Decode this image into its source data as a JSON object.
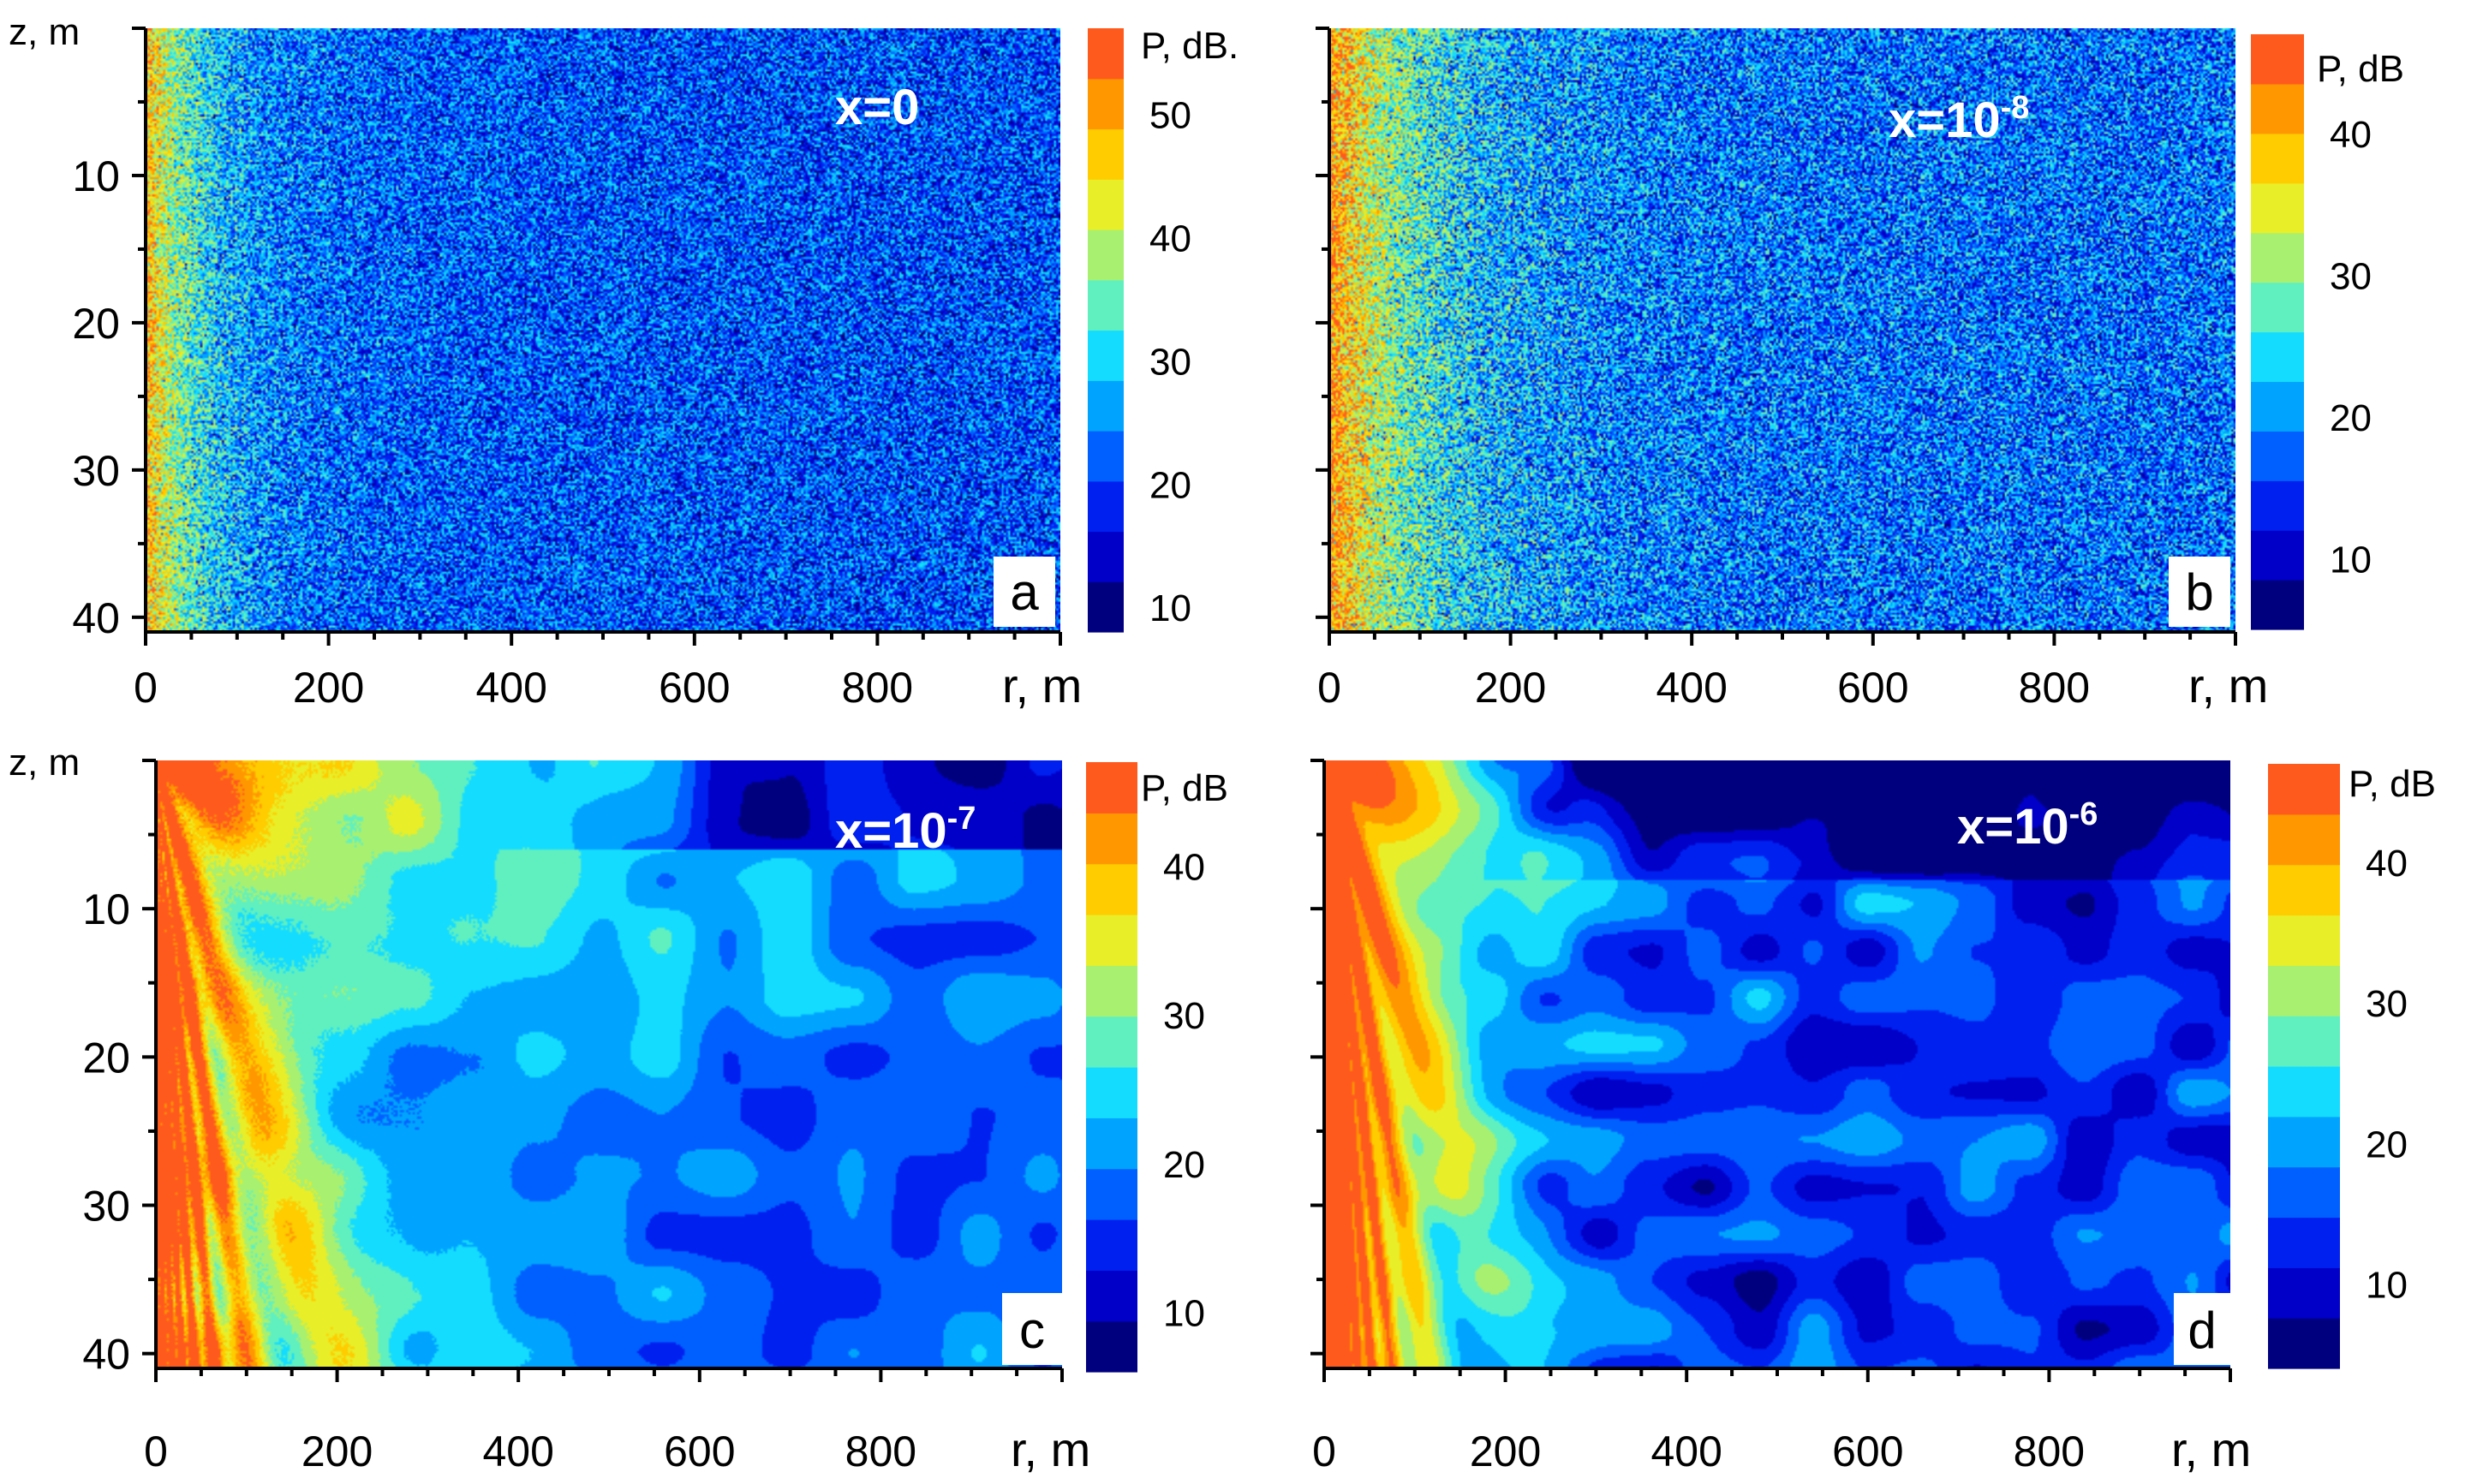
{
  "chart_data": [
    {
      "type": "heatmap",
      "panel_label": "a",
      "annotation": {
        "var": "x",
        "eq": "=",
        "base": "0",
        "exp": ""
      },
      "xlabel": "r, m",
      "ylabel": "z, m",
      "x_ticks": [
        "0",
        "200",
        "400",
        "600",
        "800"
      ],
      "y_ticks": [
        "10",
        "20",
        "30",
        "40"
      ],
      "xlim": [
        0,
        1000
      ],
      "ylim": [
        0,
        41
      ],
      "y_inverted": true,
      "colorbar": {
        "label": "P, dB.",
        "ticks": [
          "50",
          "40",
          "30",
          "20",
          "10"
        ],
        "tick_values": [
          50,
          40,
          30,
          20,
          10
        ],
        "range": [
          8,
          57
        ]
      },
      "field": {
        "pattern": "noise",
        "noise": 0.8,
        "source_level": 46,
        "background_level": 21,
        "decay_range_m": 160
      },
      "colors": [
        "#00007f",
        "#0000c8",
        "#0020f0",
        "#0060ff",
        "#00a4ff",
        "#14dcff",
        "#60f0c0",
        "#a8f070",
        "#e8ee28",
        "#ffcc00",
        "#ff9800",
        "#ff5a1e"
      ]
    },
    {
      "type": "heatmap",
      "panel_label": "b",
      "annotation": {
        "var": "x",
        "eq": "=",
        "base": "10",
        "exp": "-8"
      },
      "xlabel": "r, m",
      "ylabel": "",
      "x_ticks": [
        "0",
        "200",
        "400",
        "600",
        "800"
      ],
      "y_ticks": [],
      "xlim": [
        0,
        1000
      ],
      "ylim": [
        0,
        41
      ],
      "y_inverted": true,
      "colorbar": {
        "label": "P, dB",
        "ticks": [
          "40",
          "30",
          "20",
          "10"
        ],
        "tick_values": [
          40,
          30,
          20,
          10
        ],
        "range": [
          5,
          47
        ]
      },
      "field": {
        "pattern": "noise",
        "noise": 0.75,
        "source_level": 40,
        "background_level": 18,
        "decay_range_m": 250
      },
      "colors": [
        "#00007f",
        "#0000c8",
        "#0020f0",
        "#0060ff",
        "#00a4ff",
        "#14dcff",
        "#60f0c0",
        "#a8f070",
        "#e8ee28",
        "#ffcc00",
        "#ff9800",
        "#ff5a1e"
      ]
    },
    {
      "type": "heatmap",
      "panel_label": "c",
      "annotation": {
        "var": "x",
        "eq": "=",
        "base": "10",
        "exp": "-7"
      },
      "xlabel": "r, m",
      "ylabel": "z, m",
      "x_ticks": [
        "0",
        "200",
        "400",
        "600",
        "800"
      ],
      "y_ticks": [
        "10",
        "20",
        "30",
        "40"
      ],
      "xlim": [
        0,
        1000
      ],
      "ylim": [
        0,
        41
      ],
      "y_inverted": true,
      "colorbar": {
        "label": "P, dB",
        "ticks": [
          "40",
          "30",
          "20",
          "10"
        ],
        "tick_values": [
          40,
          30,
          20,
          10
        ],
        "range": [
          6,
          47
        ]
      },
      "field": {
        "pattern": "fan",
        "noise": 0.15,
        "source_level": 46,
        "background_level": 18,
        "decay_range_m": 300
      },
      "colors": [
        "#00007f",
        "#0000c8",
        "#0020f0",
        "#0060ff",
        "#00a4ff",
        "#14dcff",
        "#60f0c0",
        "#a8f070",
        "#e8ee28",
        "#ffcc00",
        "#ff9800",
        "#ff5a1e"
      ]
    },
    {
      "type": "heatmap",
      "panel_label": "d",
      "annotation": {
        "var": "x",
        "eq": "=",
        "base": "10",
        "exp": "-6"
      },
      "xlabel": "r, m",
      "ylabel": "",
      "x_ticks": [
        "0",
        "200",
        "400",
        "600",
        "800"
      ],
      "y_ticks": [],
      "xlim": [
        0,
        1000
      ],
      "ylim": [
        0,
        41
      ],
      "y_inverted": true,
      "colorbar": {
        "label": "P, dB",
        "ticks": [
          "40",
          "30",
          "20",
          "10"
        ],
        "tick_values": [
          40,
          30,
          20,
          10
        ],
        "range": [
          4,
          47
        ]
      },
      "field": {
        "pattern": "blobs",
        "noise": 0.05,
        "source_level": 46,
        "background_level": 16,
        "decay_range_m": 300
      },
      "colors": [
        "#00007f",
        "#0000c8",
        "#0020f0",
        "#0060ff",
        "#00a4ff",
        "#14dcff",
        "#60f0c0",
        "#a8f070",
        "#e8ee28",
        "#ffcc00",
        "#ff9800",
        "#ff5a1e"
      ]
    }
  ]
}
